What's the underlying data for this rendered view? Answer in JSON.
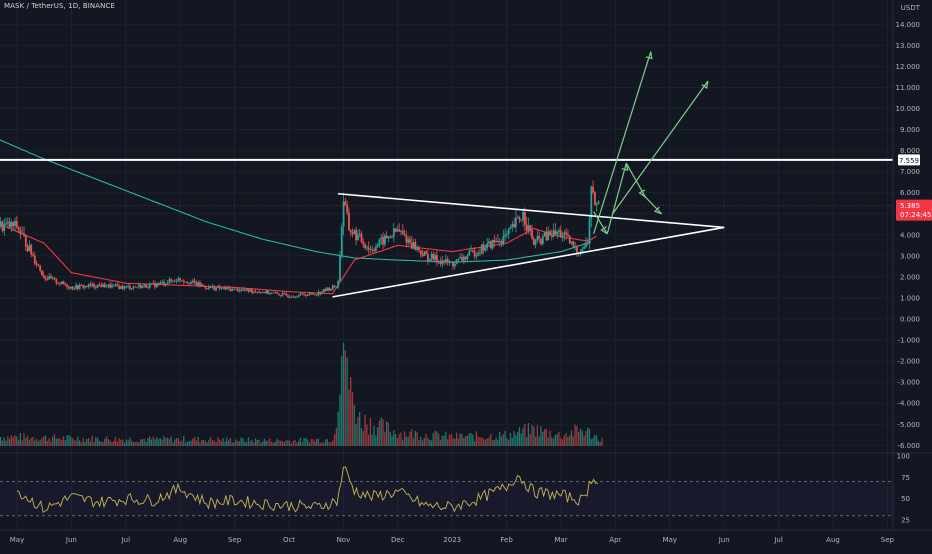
{
  "header": {
    "symbol": "MASK / TetherUS, 1D, BINANCE",
    "unit": "USDT"
  },
  "colors": {
    "background": "#131722",
    "grid": "#1c2130",
    "up": "#26a69a",
    "down": "#ef5350",
    "ma_fast": "#f23645",
    "ma_slow": "#2bb5a4",
    "rsi": "#c8b45a",
    "projection": "#7ed08b",
    "pattern": "#ffffff",
    "price_label": "#f23645"
  },
  "chart_data": [
    {
      "type": "line",
      "panel": "price",
      "title": "MASK / TetherUS, 1D, BINANCE",
      "ylabel": "USDT",
      "ylim": [
        -6.8,
        15.2
      ],
      "y_ticks": [
        "14.000",
        "13.000",
        "12.000",
        "11.000",
        "10.000",
        "9.000",
        "8.000",
        "7.000",
        "6.000",
        "5.000",
        "4.000",
        "3.000",
        "2.000",
        "1.000",
        "0.000",
        "-1.000",
        "-2.000",
        "-3.000",
        "-4.000",
        "-5.000",
        "-6.000"
      ],
      "x_ticks": [
        "May",
        "Jun",
        "Jul",
        "Aug",
        "Sep",
        "Oct",
        "Nov",
        "Dec",
        "2023",
        "Feb",
        "Mar",
        "Apr",
        "May",
        "Jun",
        "Jul",
        "Aug",
        "Sep"
      ],
      "grid": true,
      "price_series": {
        "name": "MASK/USDT close",
        "months": [
          0,
          0.5,
          1,
          1.5,
          2,
          2.5,
          3,
          3.5,
          4,
          4.5,
          5,
          5.5,
          5.9,
          6.0,
          6.1,
          6.5,
          7,
          7.5,
          8,
          8.5,
          9,
          9.3,
          9.5,
          9.8,
          10,
          10.3,
          10.5,
          10.55,
          10.6,
          10.7
        ],
        "close": [
          4.4,
          2.0,
          1.5,
          1.6,
          1.5,
          1.6,
          1.9,
          1.5,
          1.4,
          1.3,
          1.1,
          1.2,
          1.6,
          5.7,
          4.3,
          3.3,
          4.2,
          3.0,
          2.6,
          3.3,
          3.9,
          5.0,
          3.6,
          4.0,
          4.1,
          3.2,
          3.6,
          6.2,
          5.6,
          5.4
        ]
      },
      "ma_slow": {
        "name": "MA slow",
        "months": [
          -0.4,
          0.5,
          1.5,
          2.5,
          3.5,
          4.5,
          5.5,
          6.2,
          7,
          8,
          9,
          10,
          10.6
        ],
        "values": [
          8.6,
          7.6,
          6.6,
          5.6,
          4.6,
          3.8,
          3.2,
          2.9,
          2.8,
          2.7,
          2.8,
          3.2,
          3.7
        ]
      },
      "ma_fast": {
        "name": "MA fast",
        "months": [
          -0.4,
          0.5,
          1,
          2,
          3,
          4,
          5,
          5.8,
          6.2,
          7,
          8,
          9,
          9.5,
          10,
          10.5,
          10.7
        ],
        "values": [
          4.6,
          3.6,
          2.2,
          1.7,
          1.6,
          1.5,
          1.3,
          1.2,
          2.8,
          3.5,
          3.2,
          3.6,
          4.3,
          3.9,
          3.7,
          4.0
        ]
      },
      "horizontal_level": 7.559,
      "current_price": {
        "value": "5.385",
        "countdown": "07:24:45",
        "level_label": "7.559"
      },
      "triangle": {
        "upper": {
          "from": [
            5.9,
            5.95
          ],
          "to": [
            13.0,
            4.35
          ]
        },
        "lower": {
          "from": [
            5.8,
            1.05
          ],
          "to": [
            13.0,
            4.35
          ]
        }
      },
      "projections": [
        {
          "from": [
            10.6,
            4.05
          ],
          "to": [
            11.65,
            12.7
          ]
        },
        {
          "from": [
            10.95,
            5.0
          ],
          "to": [
            12.7,
            11.3
          ]
        }
      ],
      "zigzag": [
        [
          10.6,
          5.1
        ],
        [
          10.85,
          4.05
        ],
        [
          11.2,
          7.4
        ],
        [
          11.55,
          5.8
        ],
        [
          11.85,
          5.0
        ]
      ]
    },
    {
      "type": "bar",
      "panel": "volume",
      "title": "",
      "note": "relative volume by month",
      "months": [
        0,
        1,
        2,
        3,
        4,
        5,
        5.8,
        6.0,
        6.3,
        7,
        8,
        9,
        9.5,
        10,
        10.4,
        10.7
      ],
      "values": [
        12,
        10,
        9,
        9,
        8,
        7,
        9,
        100,
        35,
        18,
        12,
        14,
        22,
        14,
        22,
        10
      ]
    },
    {
      "type": "line",
      "panel": "rsi",
      "title": "",
      "ylim": [
        25,
        100
      ],
      "y_ticks": [
        "100",
        "75",
        "50",
        "25"
      ],
      "band": [
        30,
        70
      ],
      "months": [
        0,
        0.5,
        1,
        1.5,
        2,
        2.5,
        3,
        3.5,
        4,
        4.5,
        5,
        5.5,
        5.9,
        6.0,
        6.2,
        6.5,
        7,
        7.5,
        8,
        8.5,
        9,
        9.2,
        9.5,
        10,
        10.4,
        10.6,
        10.7
      ],
      "values": [
        60,
        38,
        52,
        46,
        50,
        48,
        62,
        45,
        48,
        44,
        42,
        40,
        48,
        88,
        60,
        52,
        58,
        42,
        40,
        50,
        64,
        78,
        58,
        54,
        48,
        78,
        66
      ]
    }
  ]
}
